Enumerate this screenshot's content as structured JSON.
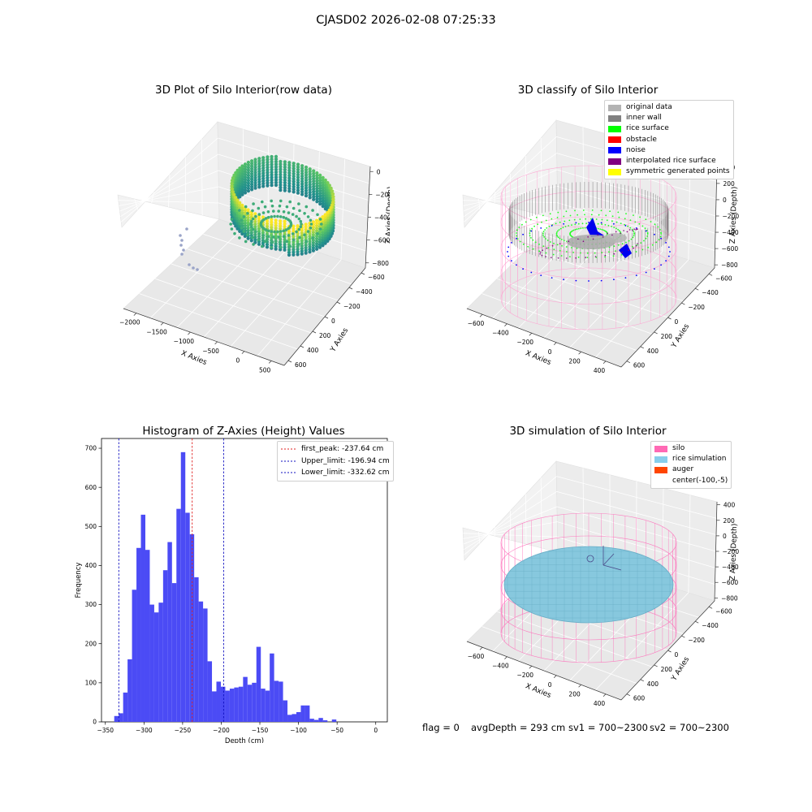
{
  "suptitle": "CJASD02 2026-02-08 07:25:33",
  "status": {
    "flag": "flag = 0",
    "avg_depth": "avgDepth = 293 cm",
    "sv1": "sv1 = 700~2300",
    "sv2": "sv2 = 700~2300"
  },
  "colors": {
    "hist_bar": "#4b4bf5",
    "first_peak": "#e02020",
    "limit": "#1010c0",
    "silo": "#ff69b4",
    "rice_simulation": "#87ceeb",
    "auger": "#ff4500"
  },
  "chart_data": [
    {
      "id": "raw",
      "type": "scatter3d",
      "title": "3D Plot of Silo Interior(row data)",
      "xlabel": "X Axies",
      "ylabel": "Y Axies",
      "zlabel": "Z Axies (Depth)",
      "x_ticks": [
        "−2000",
        "−1500",
        "−1000",
        "−500",
        "0",
        "500"
      ],
      "y_ticks": [
        "−600",
        "−400",
        "−200",
        "0",
        "200",
        "400",
        "600"
      ],
      "z_ticks": [
        "0",
        "−200",
        "−400",
        "−600",
        "−800"
      ],
      "xlim": [
        -2200,
        600
      ],
      "ylim": [
        -700,
        700
      ],
      "zlim": [
        -900,
        50
      ],
      "colormap": "viridis"
    },
    {
      "id": "classify",
      "type": "scatter3d",
      "title": "3D classify of Silo Interior",
      "xlabel": "X Axies",
      "ylabel": "Y Axies",
      "zlabel": "Z Axies (Depth)",
      "x_ticks": [
        "−600",
        "−400",
        "−200",
        "0",
        "200",
        "400"
      ],
      "y_ticks": [
        "−600",
        "−400",
        "−200",
        "0",
        "200",
        "400",
        "600"
      ],
      "z_ticks": [
        "400",
        "200",
        "0",
        "−200",
        "−400",
        "−600",
        "−800"
      ],
      "xlim": [
        -700,
        500
      ],
      "ylim": [
        -650,
        650
      ],
      "zlim": [
        -900,
        450
      ],
      "legend": [
        {
          "label": "original data",
          "color": "#b3b3b3"
        },
        {
          "label": "inner wall",
          "color": "#808080"
        },
        {
          "label": "rice surface",
          "color": "#00ff00"
        },
        {
          "label": "obstacle",
          "color": "#ff0000"
        },
        {
          "label": "noise",
          "color": "#0000ff"
        },
        {
          "label": "interpolated rice surface",
          "color": "#800080"
        },
        {
          "label": "symmetric generated points",
          "color": "#ffff00"
        }
      ]
    },
    {
      "id": "hist",
      "type": "bar",
      "title": "Histogram of Z-Axies (Height) Values",
      "xlabel": "Depth (cm)",
      "ylabel": "Frequency",
      "xlim": [
        -355,
        15
      ],
      "ylim": [
        0,
        725
      ],
      "x_ticks": [
        -350,
        -300,
        -250,
        -200,
        -150,
        -100,
        -50,
        0
      ],
      "y_ticks": [
        0,
        100,
        200,
        300,
        400,
        500,
        600,
        700
      ],
      "bin_start": -338.5,
      "bin_width": 5.75,
      "values": [
        15,
        22,
        75,
        160,
        338,
        445,
        530,
        440,
        300,
        280,
        305,
        388,
        460,
        355,
        545,
        690,
        535,
        480,
        370,
        308,
        290,
        155,
        78,
        103,
        90,
        80,
        85,
        88,
        90,
        115,
        95,
        100,
        192,
        85,
        80,
        175,
        105,
        103,
        55,
        18,
        20,
        25,
        42,
        42,
        8,
        5,
        10,
        4,
        0,
        6
      ],
      "lines": [
        {
          "label": "first_peak: -237.64 cm",
          "x": -237.64,
          "color": "#e02020"
        },
        {
          "label": "Upper_limit: -196.94 cm",
          "x": -196.94,
          "color": "#1010c0"
        },
        {
          "label": "Lower_limit: -332.62 cm",
          "x": -332.62,
          "color": "#1010c0"
        }
      ]
    },
    {
      "id": "sim",
      "type": "surface3d",
      "title": "3D simulation of Silo Interior",
      "xlabel": "X Axies",
      "ylabel": "Y Axies",
      "zlabel": "Z Axies (Depth)",
      "x_ticks": [
        "−600",
        "−400",
        "−200",
        "0",
        "200",
        "400"
      ],
      "y_ticks": [
        "−600",
        "−400",
        "−200",
        "0",
        "200",
        "400",
        "600"
      ],
      "z_ticks": [
        "400",
        "200",
        "0",
        "−200",
        "−400",
        "−600",
        "−800"
      ],
      "xlim": [
        -700,
        500
      ],
      "ylim": [
        -650,
        650
      ],
      "zlim": [
        -900,
        450
      ],
      "legend": [
        {
          "label": "silo",
          "color": "#ff69b4"
        },
        {
          "label": "rice simulation",
          "color": "#87ceeb"
        },
        {
          "label": "auger",
          "color": "#ff4500"
        },
        {
          "label": "center(-100,-5)",
          "color": ""
        }
      ]
    }
  ]
}
